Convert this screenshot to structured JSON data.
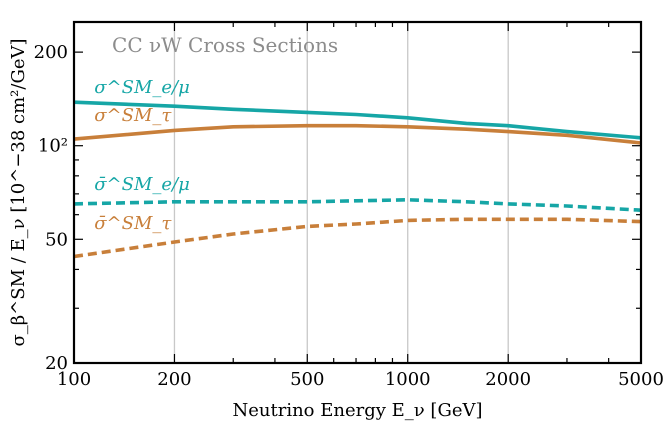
{
  "chart_data": {
    "type": "line",
    "title": "CC νW Cross Sections",
    "xlabel": "Neutrino Energy E_ν [GeV]",
    "ylabel": "σ_β^SM / E_ν [10^−38 cm²/GeV]",
    "xscale": "log",
    "yscale": "log",
    "xlim": [
      100,
      5000
    ],
    "ylim": [
      20,
      250
    ],
    "grid": "vertical lines at x = 200, 500, 1000, 2000",
    "x_ticks": [
      {
        "value": 100,
        "label": "100"
      },
      {
        "value": 200,
        "label": "200"
      },
      {
        "value": 500,
        "label": "500"
      },
      {
        "value": 1000,
        "label": "1000"
      },
      {
        "value": 2000,
        "label": "2000"
      },
      {
        "value": 5000,
        "label": "5000"
      }
    ],
    "y_ticks": [
      {
        "value": 20,
        "label": "20"
      },
      {
        "value": 50,
        "label": "50"
      },
      {
        "value": 100,
        "label": "10²"
      },
      {
        "value": 200,
        "label": "200"
      }
    ],
    "series": [
      {
        "name": "σ^SM_e/μ",
        "color": "#16a6a6",
        "dash": "solid",
        "label_pos": [
          115,
          148
        ],
        "x": [
          100,
          200,
          300,
          500,
          700,
          1000,
          1500,
          2000,
          3000,
          5000
        ],
        "y": [
          138,
          134,
          131,
          128,
          126,
          123,
          118,
          116,
          111,
          106
        ]
      },
      {
        "name": "σ^SM_τ",
        "color": "#c87f3a",
        "dash": "solid",
        "label_pos": [
          115,
          120
        ],
        "x": [
          100,
          200,
          300,
          500,
          700,
          1000,
          1500,
          2000,
          3000,
          5000
        ],
        "y": [
          105,
          112,
          115,
          116,
          116,
          115,
          113,
          111,
          108,
          102
        ]
      },
      {
        "name": "σ̄^SM_e/μ",
        "color": "#16a6a6",
        "dash": "dashed",
        "label_pos": [
          115,
          72
        ],
        "x": [
          100,
          200,
          300,
          500,
          700,
          1000,
          1500,
          2000,
          3000,
          5000
        ],
        "y": [
          65,
          66,
          66,
          66,
          66.5,
          67,
          66,
          65,
          64,
          62
        ]
      },
      {
        "name": "σ̄^SM_τ",
        "color": "#c87f3a",
        "dash": "dashed",
        "label_pos": [
          115,
          54
        ],
        "x": [
          100,
          200,
          300,
          500,
          700,
          1000,
          1500,
          2000,
          3000,
          5000
        ],
        "y": [
          44,
          49,
          52,
          55,
          56,
          57.5,
          58,
          58,
          58,
          57
        ]
      }
    ]
  }
}
